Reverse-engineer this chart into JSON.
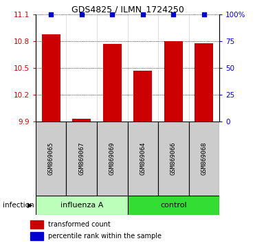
{
  "title": "GDS4825 / ILMN_1724250",
  "samples": [
    "GSM869065",
    "GSM869067",
    "GSM869069",
    "GSM869064",
    "GSM869066",
    "GSM869068"
  ],
  "bar_values": [
    10.88,
    9.93,
    10.77,
    10.47,
    10.8,
    10.78
  ],
  "percentile_values": [
    100,
    100,
    100,
    100,
    100,
    100
  ],
  "ylim_left": [
    9.9,
    11.1
  ],
  "ylim_right": [
    0,
    100
  ],
  "yticks_left": [
    9.9,
    10.2,
    10.5,
    10.8,
    11.1
  ],
  "yticks_right": [
    0,
    25,
    50,
    75,
    100
  ],
  "ytick_labels_left": [
    "9.9",
    "10.2",
    "10.5",
    "10.8",
    "11.1"
  ],
  "ytick_labels_right": [
    "0",
    "25",
    "50",
    "75",
    "100%"
  ],
  "bar_color": "#cc0000",
  "percentile_color": "#0000cc",
  "group1_label": "influenza A",
  "group2_label": "control",
  "group1_indices": [
    0,
    1,
    2
  ],
  "group2_indices": [
    3,
    4,
    5
  ],
  "group1_color": "#bbffbb",
  "group2_color": "#33dd33",
  "infection_label": "infection",
  "infection_arrow": "▶",
  "legend_bar_label": "transformed count",
  "legend_pct_label": "percentile rank within the sample",
  "background_color": "#ffffff",
  "label_area_color": "#cccccc",
  "bar_bottom": 9.9,
  "bar_width": 0.6
}
